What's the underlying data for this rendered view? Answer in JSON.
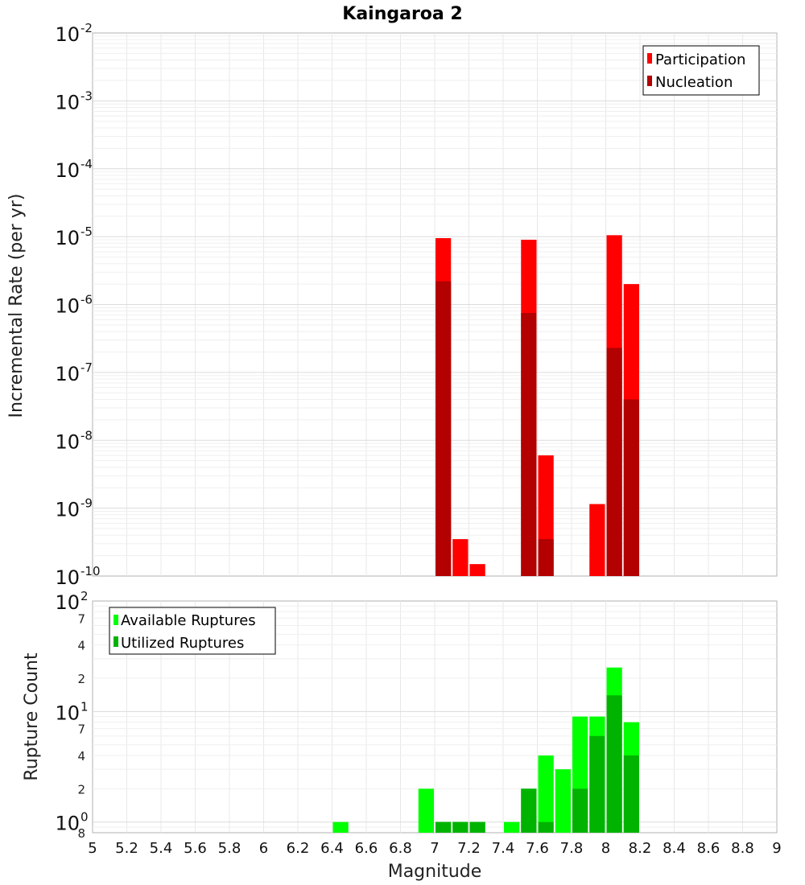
{
  "chart_data": [
    {
      "type": "bar",
      "title": "Kaingaroa 2",
      "xlabel": "",
      "ylabel": "Incremental Rate (per yr)",
      "yscale": "log",
      "ylim": [
        1e-10,
        0.01
      ],
      "xlim": [
        5,
        9
      ],
      "bin_width": 0.1,
      "grid": true,
      "legend_position": "top-right",
      "y_tick_labels": [
        {
          "base": "10",
          "exp": "-10",
          "value": 1e-10
        },
        {
          "base": "10",
          "exp": "-9",
          "value": 1e-09
        },
        {
          "base": "10",
          "exp": "-8",
          "value": 1e-08
        },
        {
          "base": "10",
          "exp": "-7",
          "value": 1e-07
        },
        {
          "base": "10",
          "exp": "-6",
          "value": 1e-06
        },
        {
          "base": "10",
          "exp": "-5",
          "value": 1e-05
        },
        {
          "base": "10",
          "exp": "-4",
          "value": 0.0001
        },
        {
          "base": "10",
          "exp": "-3",
          "value": 0.001
        },
        {
          "base": "10",
          "exp": "-2",
          "value": 0.01
        }
      ],
      "series": [
        {
          "name": "Participation",
          "color": "#ff0000",
          "x": [
            7.05,
            7.15,
            7.25,
            7.55,
            7.65,
            7.95,
            8.05,
            8.15
          ],
          "values": [
            9.5e-06,
            3.5e-10,
            1.5e-10,
            9e-06,
            6e-09,
            1.15e-09,
            1.05e-05,
            2e-06
          ]
        },
        {
          "name": "Nucleation",
          "color": "#b30000",
          "x": [
            7.05,
            7.55,
            7.65,
            8.05,
            8.15
          ],
          "values": [
            2.2e-06,
            7.5e-07,
            3.5e-10,
            2.3e-07,
            4e-08
          ]
        }
      ]
    },
    {
      "type": "bar",
      "title": "",
      "xlabel": "Magnitude",
      "ylabel": "Rupture Count",
      "yscale": "log",
      "ylim": [
        0.8,
        100
      ],
      "xlim": [
        5,
        9
      ],
      "bin_width": 0.1,
      "grid": true,
      "legend_position": "top-left",
      "x_tick_labels": [
        "5",
        "5.2",
        "5.4",
        "5.6",
        "5.8",
        "6",
        "6.2",
        "6.4",
        "6.6",
        "6.8",
        "7",
        "7.2",
        "7.4",
        "7.6",
        "7.8",
        "8",
        "8.2",
        "8.4",
        "8.6",
        "8.8",
        "9"
      ],
      "y_tick_labels": [
        {
          "base": "10",
          "exp": "0",
          "value": 1
        },
        {
          "base": "10",
          "exp": "1",
          "value": 10
        },
        {
          "base": "10",
          "exp": "2",
          "value": 100
        }
      ],
      "y_minor_labels": [
        {
          "label": "8",
          "value": 0.8
        },
        {
          "label": "2",
          "value": 2
        },
        {
          "label": "4",
          "value": 4
        },
        {
          "label": "7",
          "value": 7
        },
        {
          "label": "2",
          "value": 20
        },
        {
          "label": "4",
          "value": 40
        },
        {
          "label": "7",
          "value": 70
        }
      ],
      "series": [
        {
          "name": "Available Ruptures",
          "color": "#00ff00",
          "x": [
            6.45,
            6.95,
            7.05,
            7.15,
            7.25,
            7.45,
            7.55,
            7.65,
            7.75,
            7.85,
            7.95,
            8.05,
            8.15
          ],
          "values": [
            1,
            2,
            1,
            1,
            1,
            1,
            2,
            4,
            3,
            9,
            9,
            25,
            8
          ]
        },
        {
          "name": "Utilized Ruptures",
          "color": "#00b300",
          "x": [
            7.05,
            7.15,
            7.25,
            7.55,
            7.65,
            7.85,
            7.95,
            8.05,
            8.15
          ],
          "values": [
            1,
            1,
            1,
            2,
            1,
            2,
            6,
            14,
            4
          ]
        }
      ]
    }
  ]
}
